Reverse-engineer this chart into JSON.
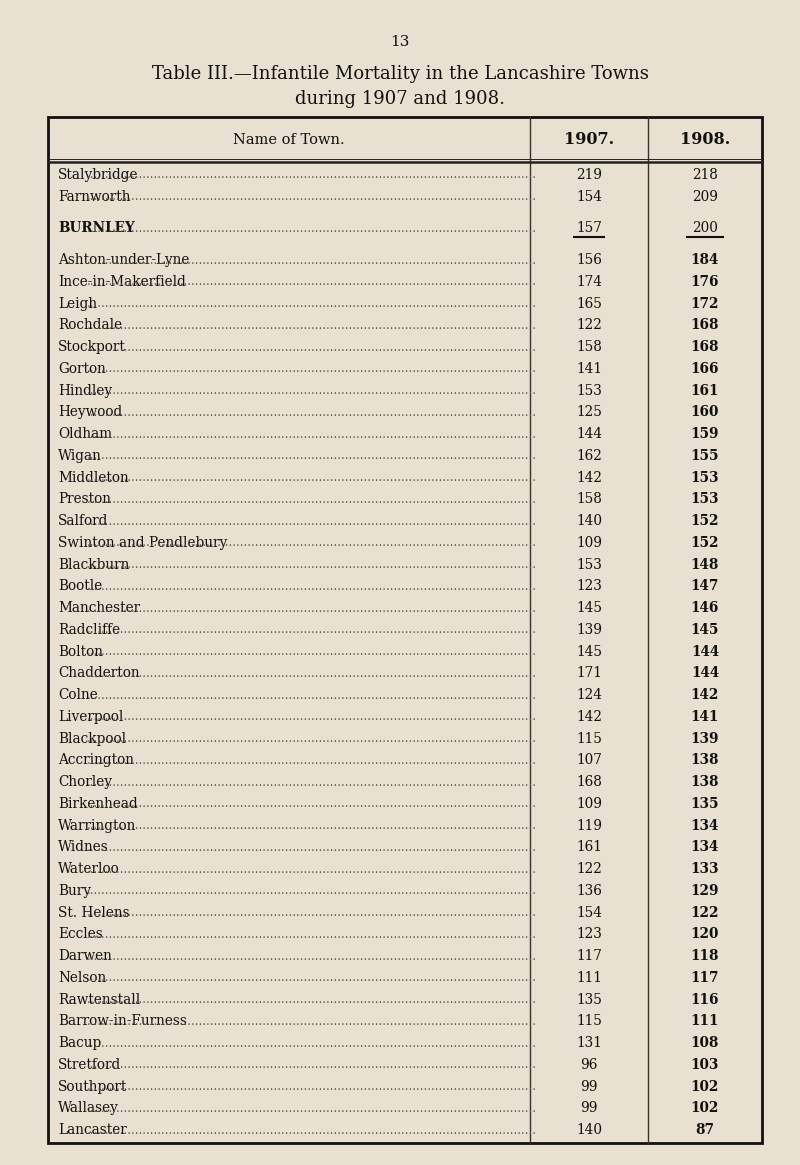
{
  "page_number": "13",
  "title_line1": "Table III.—Infantile Mortality in the Lancashire Towns",
  "title_line2": "during 1907 and 1908.",
  "col_header_name": "Name of Town.",
  "col_header_1907": "1907.",
  "col_header_1908": "1908.",
  "bg_color": "#e8e0d0",
  "text_color": "#111111",
  "rows": [
    {
      "name": "Stalybridge",
      "v1907": "219",
      "v1908": "218",
      "bold1908": false,
      "underline": false,
      "bold_name": false,
      "gap_before": false
    },
    {
      "name": "Farnworth",
      "v1907": "154",
      "v1908": "209",
      "bold1908": false,
      "underline": false,
      "bold_name": false,
      "gap_before": false
    },
    {
      "name": "BURNLEY",
      "v1907": "157",
      "v1908": "200",
      "bold1908": false,
      "underline": true,
      "bold_name": true,
      "gap_before": true
    },
    {
      "name": "Ashton-under-Lyne",
      "v1907": "156",
      "v1908": "184",
      "bold1908": true,
      "underline": false,
      "bold_name": false,
      "gap_before": true
    },
    {
      "name": "Ince-in-Makerfield",
      "v1907": "174",
      "v1908": "176",
      "bold1908": true,
      "underline": false,
      "bold_name": false,
      "gap_before": false
    },
    {
      "name": "Leigh",
      "v1907": "165",
      "v1908": "172",
      "bold1908": true,
      "underline": false,
      "bold_name": false,
      "gap_before": false
    },
    {
      "name": "Rochdale",
      "v1907": "122",
      "v1908": "168",
      "bold1908": true,
      "underline": false,
      "bold_name": false,
      "gap_before": false
    },
    {
      "name": "Stockport",
      "v1907": "158",
      "v1908": "168",
      "bold1908": true,
      "underline": false,
      "bold_name": false,
      "gap_before": false
    },
    {
      "name": "Gorton",
      "v1907": "141",
      "v1908": "166",
      "bold1908": true,
      "underline": false,
      "bold_name": false,
      "gap_before": false
    },
    {
      "name": "Hindley",
      "v1907": "153",
      "v1908": "161",
      "bold1908": true,
      "underline": false,
      "bold_name": false,
      "gap_before": false
    },
    {
      "name": "Heywood",
      "v1907": "125",
      "v1908": "160",
      "bold1908": true,
      "underline": false,
      "bold_name": false,
      "gap_before": false
    },
    {
      "name": "Oldham",
      "v1907": "144",
      "v1908": "159",
      "bold1908": true,
      "underline": false,
      "bold_name": false,
      "gap_before": false
    },
    {
      "name": "Wigan",
      "v1907": "162",
      "v1908": "155",
      "bold1908": true,
      "underline": false,
      "bold_name": false,
      "gap_before": false
    },
    {
      "name": "Middleton",
      "v1907": "142",
      "v1908": "153",
      "bold1908": true,
      "underline": false,
      "bold_name": false,
      "gap_before": false
    },
    {
      "name": "Preston",
      "v1907": "158",
      "v1908": "153",
      "bold1908": true,
      "underline": false,
      "bold_name": false,
      "gap_before": false
    },
    {
      "name": "Salford",
      "v1907": "140",
      "v1908": "152",
      "bold1908": true,
      "underline": false,
      "bold_name": false,
      "gap_before": false
    },
    {
      "name": "Swinton and Pendlebury",
      "v1907": "109",
      "v1908": "152",
      "bold1908": true,
      "underline": false,
      "bold_name": false,
      "gap_before": false
    },
    {
      "name": "Blackburn",
      "v1907": "153",
      "v1908": "148",
      "bold1908": true,
      "underline": false,
      "bold_name": false,
      "gap_before": false
    },
    {
      "name": "Bootle",
      "v1907": "123",
      "v1908": "147",
      "bold1908": true,
      "underline": false,
      "bold_name": false,
      "gap_before": false
    },
    {
      "name": "Manchester",
      "v1907": "145",
      "v1908": "146",
      "bold1908": true,
      "underline": false,
      "bold_name": false,
      "gap_before": false
    },
    {
      "name": "Radcliffe",
      "v1907": "139",
      "v1908": "145",
      "bold1908": true,
      "underline": false,
      "bold_name": false,
      "gap_before": false
    },
    {
      "name": "Bolton",
      "v1907": "145",
      "v1908": "144",
      "bold1908": true,
      "underline": false,
      "bold_name": false,
      "gap_before": false
    },
    {
      "name": "Chadderton",
      "v1907": "171",
      "v1908": "144",
      "bold1908": true,
      "underline": false,
      "bold_name": false,
      "gap_before": false
    },
    {
      "name": "Colne",
      "v1907": "124",
      "v1908": "142",
      "bold1908": true,
      "underline": false,
      "bold_name": false,
      "gap_before": false
    },
    {
      "name": "Liverpool",
      "v1907": "142",
      "v1908": "141",
      "bold1908": true,
      "underline": false,
      "bold_name": false,
      "gap_before": false
    },
    {
      "name": "Blackpool",
      "v1907": "115",
      "v1908": "139",
      "bold1908": true,
      "underline": false,
      "bold_name": false,
      "gap_before": false
    },
    {
      "name": "Accrington",
      "v1907": "107",
      "v1908": "138",
      "bold1908": true,
      "underline": false,
      "bold_name": false,
      "gap_before": false
    },
    {
      "name": "Chorley",
      "v1907": "168",
      "v1908": "138",
      "bold1908": true,
      "underline": false,
      "bold_name": false,
      "gap_before": false
    },
    {
      "name": "Birkenhead",
      "v1907": "109",
      "v1908": "135",
      "bold1908": true,
      "underline": false,
      "bold_name": false,
      "gap_before": false
    },
    {
      "name": "Warrington",
      "v1907": "119",
      "v1908": "134",
      "bold1908": true,
      "underline": false,
      "bold_name": false,
      "gap_before": false
    },
    {
      "name": "Widnes",
      "v1907": "161",
      "v1908": "134",
      "bold1908": true,
      "underline": false,
      "bold_name": false,
      "gap_before": false
    },
    {
      "name": "Waterloo",
      "v1907": "122",
      "v1908": "133",
      "bold1908": true,
      "underline": false,
      "bold_name": false,
      "gap_before": false
    },
    {
      "name": "Bury",
      "v1907": "136",
      "v1908": "129",
      "bold1908": true,
      "underline": false,
      "bold_name": false,
      "gap_before": false
    },
    {
      "name": "St. Helens",
      "v1907": "154",
      "v1908": "122",
      "bold1908": true,
      "underline": false,
      "bold_name": false,
      "gap_before": false
    },
    {
      "name": "Eccles",
      "v1907": "123",
      "v1908": "120",
      "bold1908": true,
      "underline": false,
      "bold_name": false,
      "gap_before": false
    },
    {
      "name": "Darwen",
      "v1907": "117",
      "v1908": "118",
      "bold1908": true,
      "underline": false,
      "bold_name": false,
      "gap_before": false
    },
    {
      "name": "Nelson",
      "v1907": "111",
      "v1908": "117",
      "bold1908": true,
      "underline": false,
      "bold_name": false,
      "gap_before": false
    },
    {
      "name": "Rawtenstall",
      "v1907": "135",
      "v1908": "116",
      "bold1908": true,
      "underline": false,
      "bold_name": false,
      "gap_before": false
    },
    {
      "name": "Barrow-in-Furness",
      "v1907": "115",
      "v1908": "111",
      "bold1908": true,
      "underline": false,
      "bold_name": false,
      "gap_before": false
    },
    {
      "name": "Bacup",
      "v1907": "131",
      "v1908": "108",
      "bold1908": true,
      "underline": false,
      "bold_name": false,
      "gap_before": false
    },
    {
      "name": "Stretford",
      "v1907": "96",
      "v1908": "103",
      "bold1908": true,
      "underline": false,
      "bold_name": false,
      "gap_before": false
    },
    {
      "name": "Southport",
      "v1907": "99",
      "v1908": "102",
      "bold1908": true,
      "underline": false,
      "bold_name": false,
      "gap_before": false
    },
    {
      "name": "Wallasey",
      "v1907": "99",
      "v1908": "102",
      "bold1908": true,
      "underline": false,
      "bold_name": false,
      "gap_before": false
    },
    {
      "name": "Lancaster",
      "v1907": "140",
      "v1908": "87",
      "bold1908": true,
      "underline": false,
      "bold_name": false,
      "gap_before": false
    }
  ]
}
